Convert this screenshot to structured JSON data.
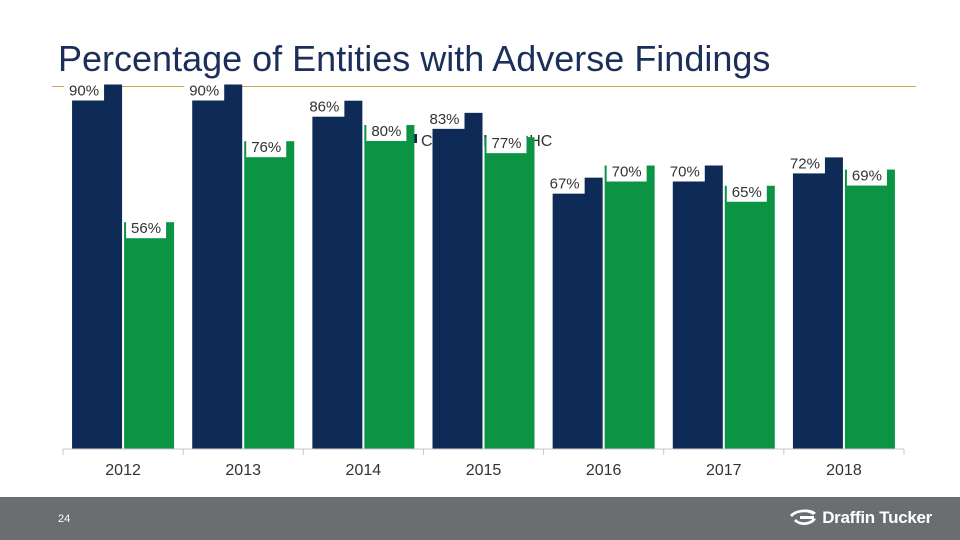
{
  "title": "Percentage of Entities with Adverse Findings",
  "colors": {
    "chc": "#0e2a56",
    "nonchc": "#0a9444",
    "axis": "#c8c8c8",
    "text": "#333333",
    "accent": "#c9a84a"
  },
  "chart_data": {
    "type": "bar",
    "title": "Percentage of Entities with Adverse Findings",
    "categories": [
      "2012",
      "2013",
      "2014",
      "2015",
      "2016",
      "2017",
      "2018"
    ],
    "series": [
      {
        "name": "CHC",
        "values": [
          90,
          90,
          86,
          83,
          67,
          70,
          72
        ],
        "labels": [
          "90%",
          "90%",
          "86%",
          "83%",
          "67%",
          "70%",
          "72%"
        ]
      },
      {
        "name": "Non-CHC",
        "values": [
          56,
          76,
          80,
          77,
          70,
          65,
          69
        ],
        "labels": [
          "56%",
          "76%",
          "80%",
          "77%",
          "70%",
          "65%",
          "69%"
        ]
      }
    ],
    "xlabel": "",
    "ylabel": "",
    "ylim": [
      0,
      100
    ],
    "legend_position": "top-center",
    "grid": false
  },
  "footer": {
    "page_number": "24",
    "brand": "Draffin Tucker",
    "brand_icon": "swoosh-logo-icon"
  }
}
